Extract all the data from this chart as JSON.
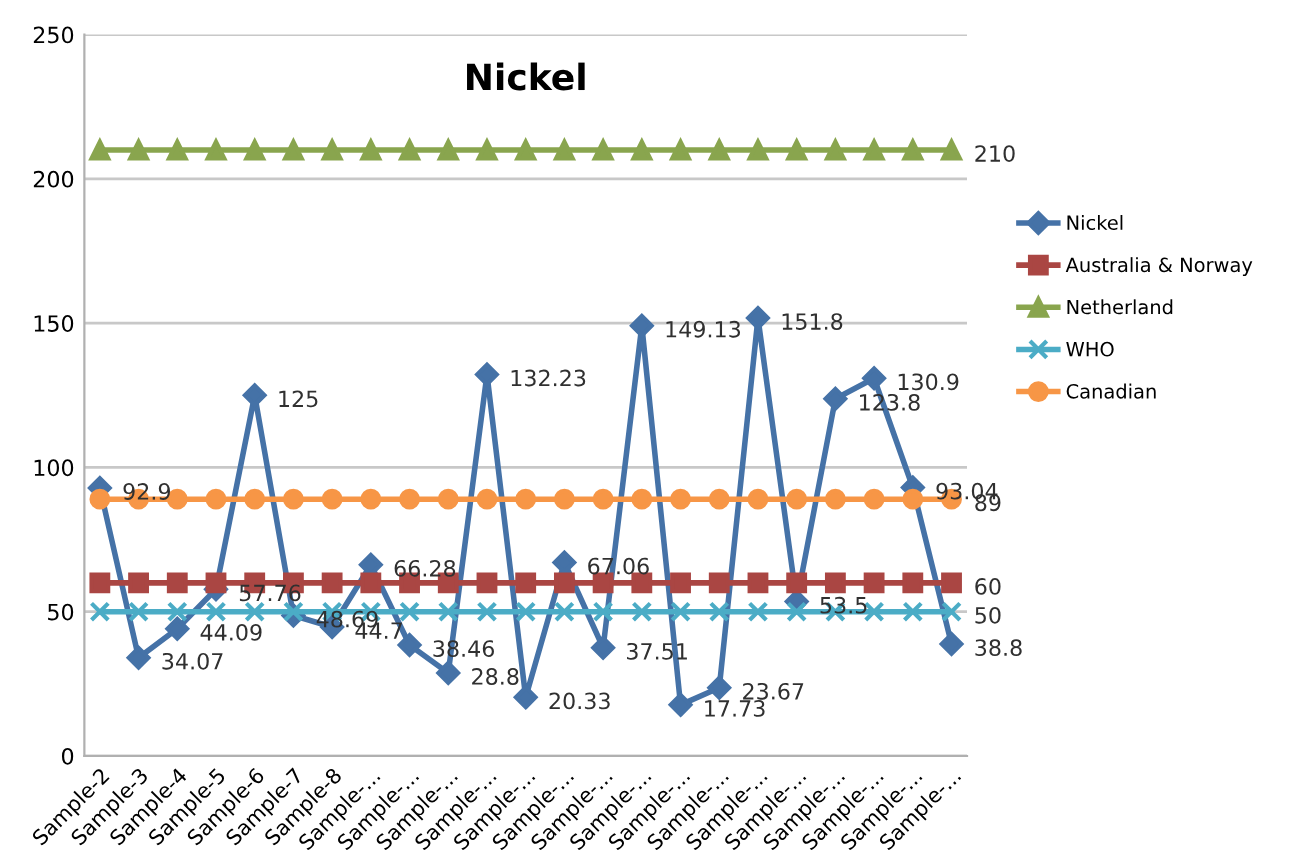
{
  "chart_data": {
    "type": "line",
    "title": "Nickel",
    "categories": [
      "Sample-2",
      "Sample-3",
      "Sample-4",
      "Sample-5",
      "Sample-6",
      "Sample-7",
      "Sample-8",
      "Sample-...",
      "Sample-...",
      "Sample-...",
      "Sample-...",
      "Sample-...",
      "Sample-...",
      "Sample-...",
      "Sample-...",
      "Sample-...",
      "Sample-...",
      "Sample-...",
      "Sample-...",
      "Sample-...",
      "Sample-...",
      "Sample-...",
      "Sample-..."
    ],
    "series": [
      {
        "name": "Nickel",
        "color": "#4572a7",
        "marker": "diamond",
        "values": [
          92.9,
          34.07,
          44.09,
          57.76,
          125,
          48.69,
          44.7,
          66.28,
          38.46,
          28.8,
          132.23,
          20.33,
          67.06,
          37.51,
          149.13,
          17.73,
          23.67,
          151.8,
          53.5,
          123.8,
          130.9,
          93.04,
          38.8
        ],
        "value_labels": [
          "92.9",
          "34.07",
          "44.09",
          "57.76",
          "125",
          "48.69",
          "44.7",
          "66.28",
          "38.46",
          "28.8",
          "132.23",
          "20.33",
          "67.06",
          "37.51",
          "149.13",
          "17.73",
          "23.67",
          "151.8",
          "53.5",
          "123.8",
          "130.9",
          "93.04",
          "38.8"
        ]
      },
      {
        "name": "Australia & Norway",
        "color": "#aa4643",
        "marker": "square",
        "values": [
          60,
          60,
          60,
          60,
          60,
          60,
          60,
          60,
          60,
          60,
          60,
          60,
          60,
          60,
          60,
          60,
          60,
          60,
          60,
          60,
          60,
          60,
          60
        ],
        "value_labels": [
          null,
          null,
          null,
          null,
          null,
          null,
          null,
          null,
          null,
          null,
          null,
          null,
          null,
          null,
          null,
          null,
          null,
          null,
          null,
          null,
          null,
          null,
          "60"
        ]
      },
      {
        "name": "Netherland",
        "color": "#89a54e",
        "marker": "triangle",
        "values": [
          210,
          210,
          210,
          210,
          210,
          210,
          210,
          210,
          210,
          210,
          210,
          210,
          210,
          210,
          210,
          210,
          210,
          210,
          210,
          210,
          210,
          210,
          210
        ],
        "value_labels": [
          null,
          null,
          null,
          null,
          null,
          null,
          null,
          null,
          null,
          null,
          null,
          null,
          null,
          null,
          null,
          null,
          null,
          null,
          null,
          null,
          null,
          null,
          "210"
        ]
      },
      {
        "name": "WHO",
        "color": "#4bacc6",
        "marker": "cross",
        "values": [
          50,
          50,
          50,
          50,
          50,
          50,
          50,
          50,
          50,
          50,
          50,
          50,
          50,
          50,
          50,
          50,
          50,
          50,
          50,
          50,
          50,
          50,
          50
        ],
        "value_labels": [
          null,
          null,
          null,
          null,
          null,
          null,
          null,
          null,
          null,
          null,
          null,
          null,
          null,
          null,
          null,
          null,
          null,
          null,
          null,
          null,
          null,
          null,
          "50"
        ]
      },
      {
        "name": "Canadian",
        "color": "#f79646",
        "marker": "circle",
        "values": [
          89,
          89,
          89,
          89,
          89,
          89,
          89,
          89,
          89,
          89,
          89,
          89,
          89,
          89,
          89,
          89,
          89,
          89,
          89,
          89,
          89,
          89,
          89
        ],
        "value_labels": [
          null,
          null,
          null,
          null,
          null,
          null,
          null,
          null,
          null,
          null,
          null,
          null,
          null,
          null,
          null,
          null,
          null,
          null,
          null,
          null,
          null,
          null,
          "89"
        ]
      }
    ],
    "ylim": [
      0,
      250
    ],
    "yticks": [
      0,
      50,
      100,
      150,
      200,
      250
    ],
    "grid": "y",
    "legend": "right",
    "line_style": "solid"
  }
}
